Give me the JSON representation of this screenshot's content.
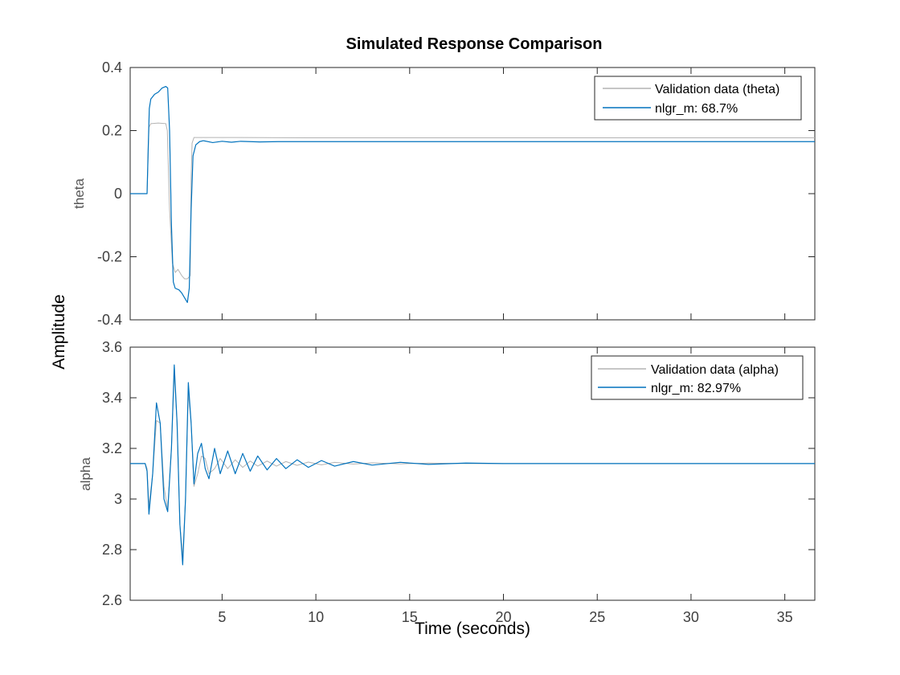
{
  "chart_data": [
    {
      "type": "line",
      "title": "Simulated Response Comparison",
      "ylabel": "theta",
      "xlim": [
        0.1,
        36.6
      ],
      "ylim": [
        -0.4,
        0.4
      ],
      "yticks": [
        -0.4,
        -0.2,
        0,
        0.2,
        0.4
      ],
      "ytick_labels": [
        "-0.4",
        "-0.2",
        "0",
        "0.2",
        "0.4"
      ],
      "legend_position": "top-right",
      "series": [
        {
          "name": "Validation data (theta)",
          "color": "#b3b3b3",
          "points": [
            [
              0.1,
              0
            ],
            [
              1.0,
              0
            ],
            [
              1.05,
              0.1
            ],
            [
              1.1,
              0.21
            ],
            [
              1.2,
              0.222
            ],
            [
              1.6,
              0.224
            ],
            [
              2.0,
              0.222
            ],
            [
              2.08,
              0.2
            ],
            [
              2.2,
              -0.05
            ],
            [
              2.35,
              -0.22
            ],
            [
              2.5,
              -0.25
            ],
            [
              2.65,
              -0.24
            ],
            [
              2.85,
              -0.26
            ],
            [
              3.0,
              -0.27
            ],
            [
              3.15,
              -0.27
            ],
            [
              3.3,
              -0.26
            ],
            [
              3.35,
              0.05
            ],
            [
              3.4,
              0.16
            ],
            [
              3.5,
              0.178
            ],
            [
              4.0,
              0.178
            ],
            [
              6.0,
              0.178
            ],
            [
              10.0,
              0.177
            ],
            [
              20.0,
              0.177
            ],
            [
              36.6,
              0.177
            ]
          ]
        },
        {
          "name": "nlgr_m: 68.7%",
          "color": "#0072bd",
          "points": [
            [
              0.1,
              0
            ],
            [
              1.0,
              0
            ],
            [
              1.05,
              0.12
            ],
            [
              1.12,
              0.27
            ],
            [
              1.2,
              0.3
            ],
            [
              1.4,
              0.315
            ],
            [
              1.6,
              0.322
            ],
            [
              1.8,
              0.335
            ],
            [
              2.0,
              0.34
            ],
            [
              2.1,
              0.335
            ],
            [
              2.2,
              0.2
            ],
            [
              2.3,
              -0.1
            ],
            [
              2.4,
              -0.28
            ],
            [
              2.5,
              -0.3
            ],
            [
              2.7,
              -0.305
            ],
            [
              2.85,
              -0.315
            ],
            [
              3.0,
              -0.33
            ],
            [
              3.15,
              -0.345
            ],
            [
              3.25,
              -0.3
            ],
            [
              3.35,
              -0.05
            ],
            [
              3.45,
              0.12
            ],
            [
              3.6,
              0.155
            ],
            [
              3.8,
              0.165
            ],
            [
              4.0,
              0.168
            ],
            [
              4.5,
              0.162
            ],
            [
              5.0,
              0.166
            ],
            [
              5.5,
              0.163
            ],
            [
              6.0,
              0.166
            ],
            [
              7.0,
              0.164
            ],
            [
              8.0,
              0.165
            ],
            [
              10.0,
              0.165
            ],
            [
              20.0,
              0.165
            ],
            [
              36.6,
              0.165
            ]
          ]
        }
      ]
    },
    {
      "type": "line",
      "xlabel": "Time (seconds)",
      "ylabel": "alpha",
      "xlim": [
        0.1,
        36.6
      ],
      "ylim": [
        2.6,
        3.6
      ],
      "yticks": [
        2.6,
        2.8,
        3.0,
        3.2,
        3.4,
        3.6
      ],
      "ytick_labels": [
        "2.6",
        "2.8",
        "3",
        "3.2",
        "3.4",
        "3.6"
      ],
      "xticks": [
        5,
        10,
        15,
        20,
        25,
        30,
        35
      ],
      "xtick_labels": [
        "5",
        "10",
        "15",
        "20",
        "25",
        "30",
        "35"
      ],
      "legend_position": "top-right",
      "series": [
        {
          "name": "Validation data (alpha)",
          "color": "#b3b3b3",
          "points": [
            [
              0.1,
              3.14
            ],
            [
              0.9,
              3.14
            ],
            [
              1.0,
              3.12
            ],
            [
              1.1,
              2.97
            ],
            [
              1.3,
              3.1
            ],
            [
              1.5,
              3.31
            ],
            [
              1.7,
              3.3
            ],
            [
              1.9,
              3.05
            ],
            [
              2.1,
              2.96
            ],
            [
              2.3,
              3.2
            ],
            [
              2.45,
              3.5
            ],
            [
              2.6,
              3.3
            ],
            [
              2.75,
              2.9
            ],
            [
              2.9,
              2.77
            ],
            [
              3.05,
              3.0
            ],
            [
              3.2,
              3.42
            ],
            [
              3.35,
              3.3
            ],
            [
              3.5,
              3.05
            ],
            [
              3.7,
              3.1
            ],
            [
              3.9,
              3.17
            ],
            [
              4.1,
              3.16
            ],
            [
              4.3,
              3.1
            ],
            [
              4.6,
              3.12
            ],
            [
              4.9,
              3.16
            ],
            [
              5.3,
              3.12
            ],
            [
              5.7,
              3.155
            ],
            [
              6.1,
              3.125
            ],
            [
              6.5,
              3.15
            ],
            [
              6.9,
              3.13
            ],
            [
              7.4,
              3.15
            ],
            [
              7.9,
              3.13
            ],
            [
              8.4,
              3.148
            ],
            [
              9.0,
              3.133
            ],
            [
              9.6,
              3.146
            ],
            [
              10.3,
              3.135
            ],
            [
              11.0,
              3.145
            ],
            [
              12.0,
              3.138
            ],
            [
              13.0,
              3.143
            ],
            [
              14.5,
              3.139
            ],
            [
              16.0,
              3.142
            ],
            [
              18.0,
              3.14
            ],
            [
              36.6,
              3.14
            ]
          ]
        },
        {
          "name": "nlgr_m: 82.97%",
          "color": "#0072bd",
          "points": [
            [
              0.1,
              3.14
            ],
            [
              0.9,
              3.14
            ],
            [
              1.0,
              3.11
            ],
            [
              1.1,
              2.94
            ],
            [
              1.3,
              3.1
            ],
            [
              1.5,
              3.38
            ],
            [
              1.7,
              3.3
            ],
            [
              1.9,
              3.0
            ],
            [
              2.1,
              2.95
            ],
            [
              2.3,
              3.2
            ],
            [
              2.45,
              3.53
            ],
            [
              2.6,
              3.3
            ],
            [
              2.75,
              2.9
            ],
            [
              2.9,
              2.74
            ],
            [
              3.05,
              3.0
            ],
            [
              3.2,
              3.46
            ],
            [
              3.35,
              3.3
            ],
            [
              3.5,
              3.06
            ],
            [
              3.7,
              3.18
            ],
            [
              3.9,
              3.22
            ],
            [
              4.1,
              3.12
            ],
            [
              4.3,
              3.08
            ],
            [
              4.6,
              3.2
            ],
            [
              4.9,
              3.1
            ],
            [
              5.3,
              3.19
            ],
            [
              5.7,
              3.1
            ],
            [
              6.1,
              3.18
            ],
            [
              6.5,
              3.11
            ],
            [
              6.9,
              3.17
            ],
            [
              7.4,
              3.115
            ],
            [
              7.9,
              3.16
            ],
            [
              8.4,
              3.12
            ],
            [
              9.0,
              3.155
            ],
            [
              9.6,
              3.125
            ],
            [
              10.3,
              3.152
            ],
            [
              11.0,
              3.13
            ],
            [
              12.0,
              3.148
            ],
            [
              13.0,
              3.134
            ],
            [
              14.5,
              3.145
            ],
            [
              16.0,
              3.137
            ],
            [
              18.0,
              3.142
            ],
            [
              20.0,
              3.14
            ],
            [
              36.6,
              3.14
            ]
          ]
        }
      ]
    }
  ],
  "supylabel": "Amplitude"
}
